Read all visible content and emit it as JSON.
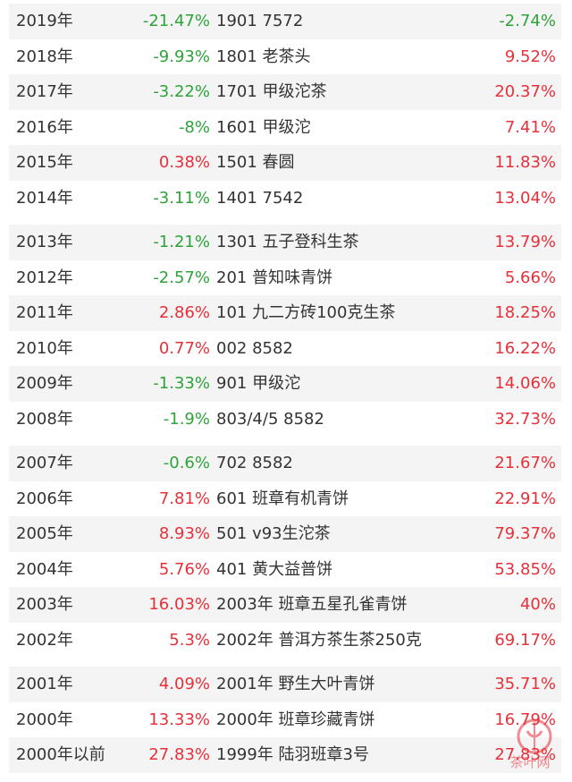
{
  "colors": {
    "positive": "#e8303a",
    "negative": "#2ea33a",
    "text": "#333333",
    "stripe": "#f4f4f4"
  },
  "groups": [
    [
      {
        "year": "2019年",
        "yoy": "-21.47%",
        "yoy_sign": "neg",
        "product": "1901 7572",
        "rate": "-2.74%",
        "rate_sign": "neg"
      },
      {
        "year": "2018年",
        "yoy": "-9.93%",
        "yoy_sign": "neg",
        "product": "1801 老茶头",
        "rate": "9.52%",
        "rate_sign": "pos"
      },
      {
        "year": "2017年",
        "yoy": "-3.22%",
        "yoy_sign": "neg",
        "product": "1701 甲级沱茶",
        "rate": "20.37%",
        "rate_sign": "pos"
      },
      {
        "year": "2016年",
        "yoy": "-8%",
        "yoy_sign": "neg",
        "product": "1601 甲级沱",
        "rate": "7.41%",
        "rate_sign": "pos"
      },
      {
        "year": "2015年",
        "yoy": "0.38%",
        "yoy_sign": "pos",
        "product": "1501 春圆",
        "rate": "11.83%",
        "rate_sign": "pos"
      },
      {
        "year": "2014年",
        "yoy": "-3.11%",
        "yoy_sign": "neg",
        "product": "1401 7542",
        "rate": "13.04%",
        "rate_sign": "pos"
      }
    ],
    [
      {
        "year": "2013年",
        "yoy": "-1.21%",
        "yoy_sign": "neg",
        "product": "1301 五子登科生茶",
        "rate": "13.79%",
        "rate_sign": "pos"
      },
      {
        "year": "2012年",
        "yoy": "-2.57%",
        "yoy_sign": "neg",
        "product": "201 普知味青饼",
        "rate": "5.66%",
        "rate_sign": "pos"
      },
      {
        "year": "2011年",
        "yoy": "2.86%",
        "yoy_sign": "pos",
        "product": "101 九二方砖100克生茶",
        "rate": "18.25%",
        "rate_sign": "pos"
      },
      {
        "year": "2010年",
        "yoy": "0.77%",
        "yoy_sign": "pos",
        "product": "002 8582",
        "rate": "16.22%",
        "rate_sign": "pos"
      },
      {
        "year": "2009年",
        "yoy": "-1.33%",
        "yoy_sign": "neg",
        "product": "901 甲级沱",
        "rate": "14.06%",
        "rate_sign": "pos"
      },
      {
        "year": "2008年",
        "yoy": "-1.9%",
        "yoy_sign": "neg",
        "product": "803/4/5 8582",
        "rate": "32.73%",
        "rate_sign": "pos"
      }
    ],
    [
      {
        "year": "2007年",
        "yoy": "-0.6%",
        "yoy_sign": "neg",
        "product": "702 8582",
        "rate": "21.67%",
        "rate_sign": "pos"
      },
      {
        "year": "2006年",
        "yoy": "7.81%",
        "yoy_sign": "pos",
        "product": "601 班章有机青饼",
        "rate": "22.91%",
        "rate_sign": "pos"
      },
      {
        "year": "2005年",
        "yoy": "8.93%",
        "yoy_sign": "pos",
        "product": "501 v93生沱茶",
        "rate": "79.37%",
        "rate_sign": "pos"
      },
      {
        "year": "2004年",
        "yoy": "5.76%",
        "yoy_sign": "pos",
        "product": "401 黄大益普饼",
        "rate": "53.85%",
        "rate_sign": "pos"
      },
      {
        "year": "2003年",
        "yoy": "16.03%",
        "yoy_sign": "pos",
        "product": "2003年 班章五星孔雀青饼",
        "rate": "40%",
        "rate_sign": "pos"
      },
      {
        "year": "2002年",
        "yoy": "5.3%",
        "yoy_sign": "pos",
        "product": "2002年 普洱方茶生茶250克",
        "rate": "69.17%",
        "rate_sign": "pos"
      }
    ],
    [
      {
        "year": "2001年",
        "yoy": "4.09%",
        "yoy_sign": "pos",
        "product": "2001年 野生大叶青饼",
        "rate": "35.71%",
        "rate_sign": "pos"
      },
      {
        "year": "2000年",
        "yoy": "13.33%",
        "yoy_sign": "pos",
        "product": "2000年 班章珍藏青饼",
        "rate": "16.79%",
        "rate_sign": "pos"
      },
      {
        "year": "2000年以前",
        "yoy": "27.83%",
        "yoy_sign": "pos",
        "product": "1999年 陆羽班章3号",
        "rate": "27.83%",
        "rate_sign": "pos"
      }
    ]
  ],
  "watermark": {
    "text": "茶叶网",
    "icon": "tea-site-logo-watermark"
  }
}
